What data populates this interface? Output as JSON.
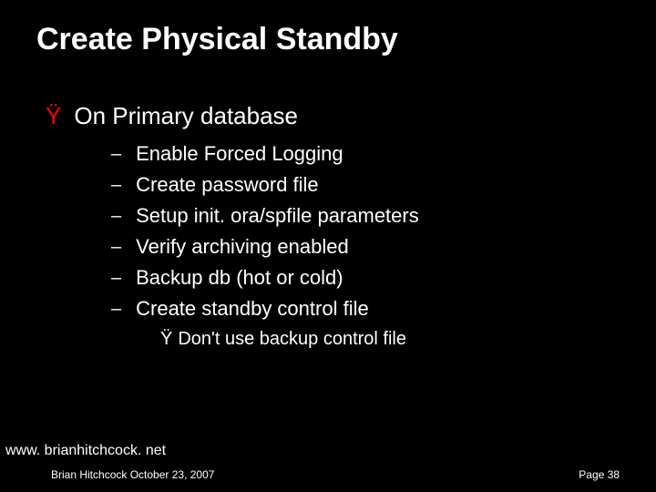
{
  "colors": {
    "background": "#000000",
    "text": "#ffffff",
    "accent_bullet": "#ff0000"
  },
  "title": "Create Physical Standby",
  "main": {
    "bullet_char": "Ÿ",
    "heading": "On Primary database",
    "dash_char": "–",
    "items": [
      "Enable Forced Logging",
      "Create password file",
      "Setup init. ora/spfile parameters",
      "Verify archiving enabled",
      "Backup db (hot or cold)",
      "Create standby control file"
    ],
    "sub": {
      "bullet_char": "Ÿ",
      "text": "Don't use backup control file"
    }
  },
  "footer": {
    "url": "www. brianhitchcock. net",
    "left": "Brian Hitchcock  October 23, 2007",
    "right": "Page 38"
  }
}
